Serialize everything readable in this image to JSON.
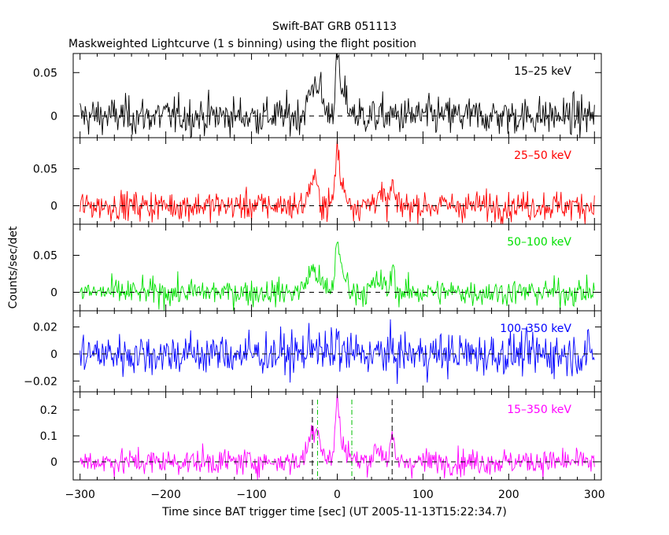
{
  "title": "Swift-BAT GRB 051113",
  "subtitle": "Maskweighted Lightcurve (1 s binning) using the flight position",
  "xlabel": "Time since BAT trigger time [sec] (UT 2005-11-13T15:22:34.7)",
  "ylabel": "Counts/sec/det",
  "chart_data": {
    "type": "line",
    "title": "Swift-BAT GRB 051113",
    "subtitle": "Maskweighted Lightcurve (1 s binning) using the flight position",
    "xlabel": "Time since BAT trigger time [sec] (UT 2005-11-13T15:22:34.7)",
    "ylabel": "Counts/sec/det",
    "xlim": [
      -308,
      308
    ],
    "x_ticks": [
      -300,
      -200,
      -100,
      0,
      100,
      200,
      300
    ],
    "x_tick_labels": [
      "−300",
      "−200",
      "−100",
      "0",
      "100",
      "200",
      "300"
    ],
    "x_range": [
      -300,
      300
    ],
    "reference_lines": {
      "black_dashed_x": [
        -29,
        64
      ],
      "green_dashdot_x": [
        -23,
        17
      ]
    },
    "panels": [
      {
        "name": "15–25 keV",
        "color": "#000000",
        "ylim": [
          -0.025,
          0.072
        ],
        "yticks": [
          0,
          0.05
        ],
        "ytick_labels": [
          "0",
          "0.05"
        ],
        "noise": 0.011,
        "pulses": [
          [
            -28,
            0.03,
            6
          ],
          [
            -21,
            0.02,
            4
          ],
          [
            0,
            0.05,
            2
          ],
          [
            5,
            0.025,
            7
          ]
        ]
      },
      {
        "name": "25–50 keV",
        "color": "#ff0000",
        "ylim": [
          -0.025,
          0.092
        ],
        "yticks": [
          0,
          0.05
        ],
        "ytick_labels": [
          "0",
          "0.05"
        ],
        "noise": 0.01,
        "pulses": [
          [
            -28,
            0.035,
            5
          ],
          [
            0,
            0.065,
            2
          ],
          [
            5,
            0.025,
            6
          ],
          [
            48,
            0.015,
            5
          ],
          [
            64,
            0.03,
            2
          ]
        ]
      },
      {
        "name": "50–100 keV",
        "color": "#00e000",
        "ylim": [
          -0.025,
          0.092
        ],
        "yticks": [
          0,
          0.05
        ],
        "ytick_labels": [
          "0",
          "0.05"
        ],
        "noise": 0.009,
        "pulses": [
          [
            -28,
            0.03,
            7
          ],
          [
            0,
            0.06,
            2
          ],
          [
            5,
            0.025,
            6
          ],
          [
            48,
            0.015,
            6
          ],
          [
            65,
            0.035,
            2
          ]
        ]
      },
      {
        "name": "100–350 keV",
        "color": "#0000ff",
        "ylim": [
          -0.028,
          0.032
        ],
        "yticks": [
          -0.02,
          0,
          0.02
        ],
        "ytick_labels": [
          "−0.02",
          "0",
          "0.02"
        ],
        "noise": 0.008,
        "pulses": [
          [
            -28,
            0.01,
            4
          ],
          [
            0,
            0.012,
            2
          ]
        ]
      },
      {
        "name": "15–350 keV",
        "color": "#ff00ff",
        "ylim": [
          -0.07,
          0.27
        ],
        "yticks": [
          0,
          0.1,
          0.2
        ],
        "ytick_labels": [
          "0",
          "0.1",
          "0.2"
        ],
        "noise": 0.025,
        "pulses": [
          [
            -28,
            0.11,
            6
          ],
          [
            -22,
            0.05,
            4
          ],
          [
            0,
            0.2,
            2
          ],
          [
            5,
            0.07,
            7
          ],
          [
            48,
            0.05,
            6
          ],
          [
            64,
            0.09,
            2
          ]
        ]
      }
    ]
  }
}
